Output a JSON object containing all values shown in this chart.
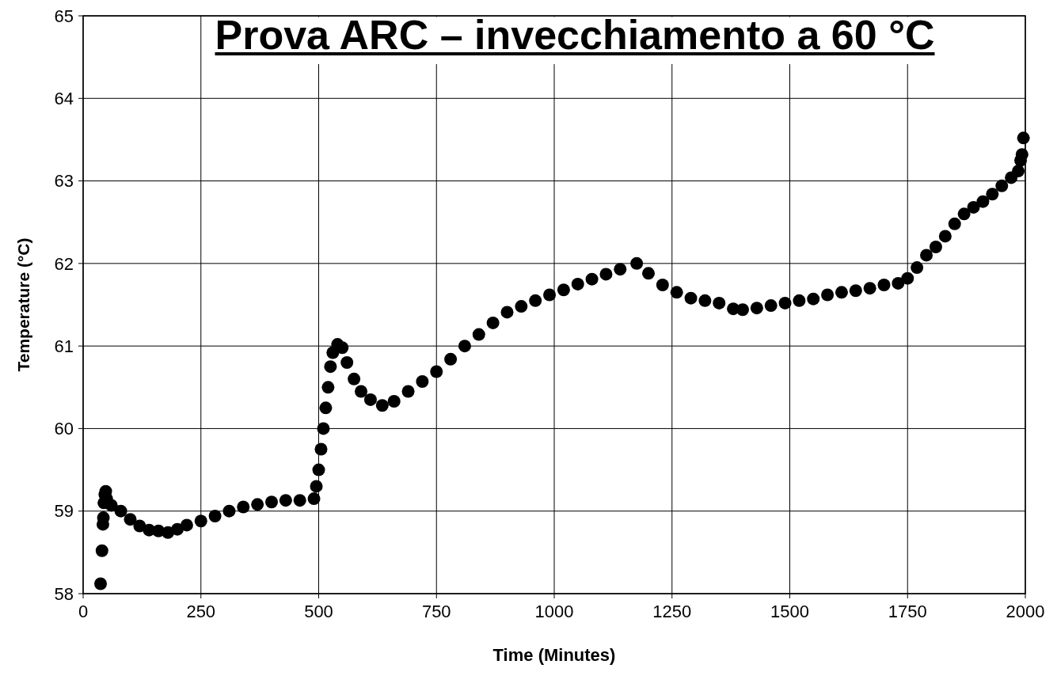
{
  "chart_data": {
    "type": "scatter",
    "title": "Prova ARC – invecchiamento a 60 °C",
    "xlabel": "Time (Minutes)",
    "ylabel": "Temperature (°C)",
    "xlim": [
      0,
      2000
    ],
    "xticks": [
      0,
      250,
      500,
      750,
      1000,
      1250,
      1500,
      1750,
      2000
    ],
    "ylim": [
      58,
      65
    ],
    "yticks": [
      58,
      59,
      60,
      61,
      62,
      63,
      64,
      65
    ],
    "grid": true,
    "marker": "circle",
    "series": [
      {
        "color": "#000000",
        "x": [
          37,
          40,
          42,
          43,
          44,
          46,
          48,
          50,
          60,
          80,
          100,
          120,
          140,
          160,
          180,
          200,
          220,
          250,
          280,
          310,
          340,
          370,
          400,
          430,
          460,
          490,
          495,
          500,
          505,
          510,
          515,
          520,
          525,
          530,
          540,
          550,
          560,
          575,
          590,
          610,
          635,
          660,
          690,
          720,
          750,
          780,
          810,
          840,
          870,
          900,
          930,
          960,
          990,
          1020,
          1050,
          1080,
          1110,
          1140,
          1175,
          1200,
          1230,
          1260,
          1290,
          1320,
          1350,
          1380,
          1400,
          1430,
          1460,
          1490,
          1520,
          1550,
          1580,
          1610,
          1640,
          1670,
          1700,
          1730,
          1750,
          1770,
          1790,
          1810,
          1830,
          1850,
          1870,
          1890,
          1910,
          1930,
          1950,
          1970,
          1985,
          1990,
          1993,
          1996
        ],
        "values": [
          58.12,
          58.52,
          58.84,
          58.92,
          59.1,
          59.2,
          59.24,
          59.15,
          59.07,
          59.0,
          58.9,
          58.82,
          58.77,
          58.76,
          58.74,
          58.78,
          58.83,
          58.88,
          58.94,
          59.0,
          59.05,
          59.08,
          59.11,
          59.13,
          59.13,
          59.15,
          59.3,
          59.5,
          59.75,
          60.0,
          60.25,
          60.5,
          60.75,
          60.92,
          61.02,
          60.98,
          60.8,
          60.6,
          60.45,
          60.35,
          60.28,
          60.33,
          60.45,
          60.57,
          60.69,
          60.84,
          61.0,
          61.14,
          61.28,
          61.41,
          61.48,
          61.55,
          61.62,
          61.68,
          61.75,
          61.81,
          61.87,
          61.93,
          62.0,
          61.88,
          61.74,
          61.65,
          61.58,
          61.55,
          61.52,
          61.45,
          61.44,
          61.46,
          61.49,
          61.52,
          61.55,
          61.57,
          61.62,
          61.65,
          61.67,
          61.7,
          61.74,
          61.76,
          61.82,
          61.95,
          62.1,
          62.2,
          62.33,
          62.48,
          62.6,
          62.68,
          62.75,
          62.84,
          62.94,
          63.04,
          63.12,
          63.25,
          63.32,
          63.52
        ]
      }
    ]
  }
}
